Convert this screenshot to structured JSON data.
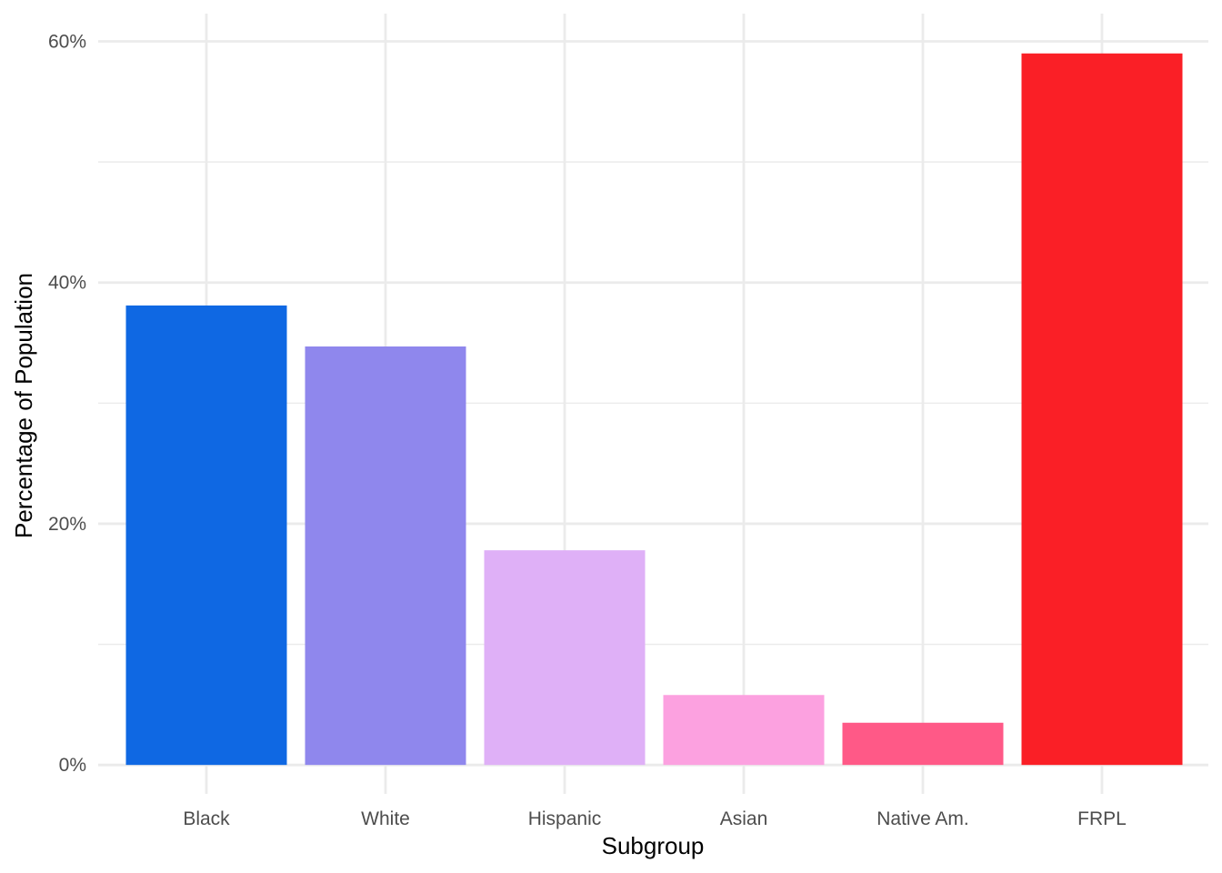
{
  "chart_data": {
    "type": "bar",
    "title": "",
    "xlabel": "Subgroup",
    "ylabel": "Percentage of Population",
    "categories": [
      "Black",
      "White",
      "Hispanic",
      "Asian",
      "Native Am.",
      "FRPL"
    ],
    "values": [
      38.1,
      34.7,
      17.8,
      5.8,
      3.5,
      59.0
    ],
    "colors": [
      "#0f68e3",
      "#8f87ed",
      "#dfb0f7",
      "#fca1e0",
      "#ff5987",
      "#fa1f26"
    ],
    "ylim": [
      -2.4,
      62.3
    ],
    "y_ticks": [
      0,
      20,
      40,
      60
    ],
    "y_tick_labels": [
      "0%",
      "20%",
      "40%",
      "60%"
    ],
    "grid": true,
    "grid_color": "#ebebeb",
    "legend": "none"
  }
}
